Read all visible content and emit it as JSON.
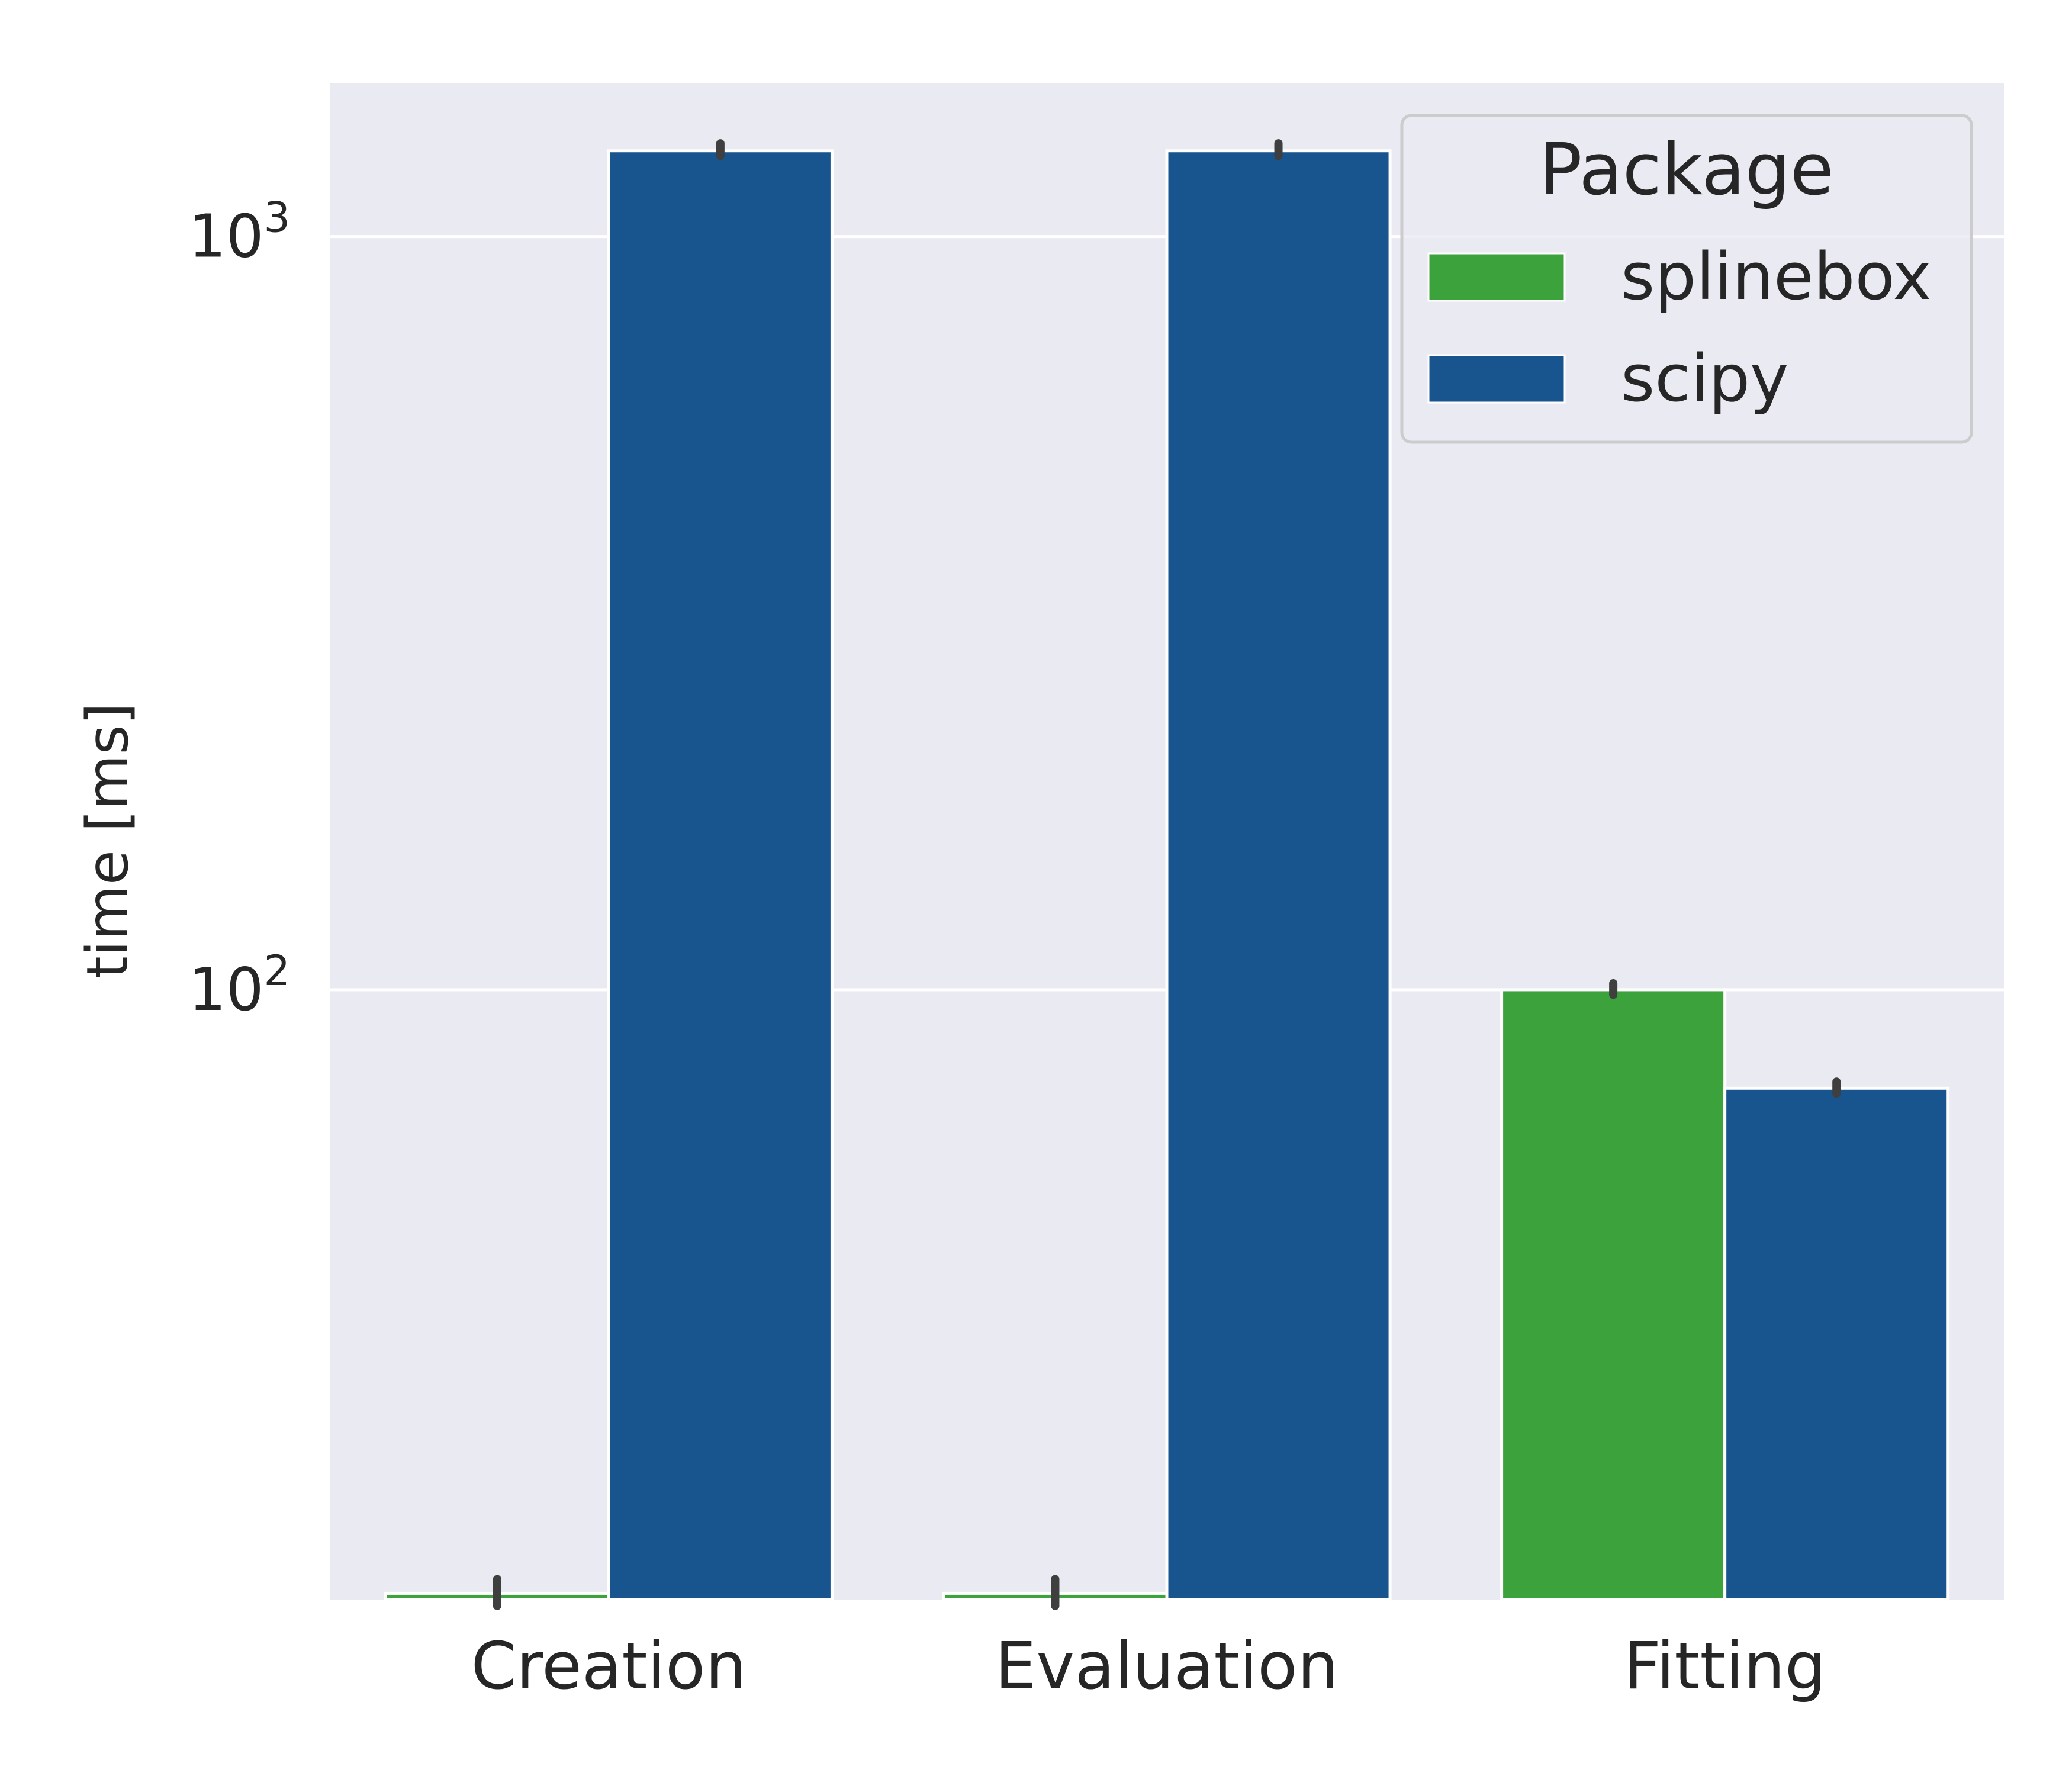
{
  "chart_data": {
    "type": "bar",
    "categories": [
      "Creation",
      "Evaluation",
      "Fitting"
    ],
    "series": [
      {
        "name": "splinebox",
        "color": "#3ca33c",
        "values": [
          15.8,
          15.8,
          100
        ],
        "error_low": [
          15.2,
          15.2,
          98.5
        ],
        "error_high": [
          16.5,
          16.5,
          102
        ]
      },
      {
        "name": "scipy",
        "color": "#18558f",
        "values": [
          1300,
          1300,
          74
        ],
        "error_low": [
          1280,
          1280,
          72.8
        ],
        "error_high": [
          1330,
          1330,
          75.5
        ]
      }
    ],
    "xlabel": "",
    "ylabel": "time [ms]",
    "yscale": "log",
    "ylim": [
      15.5,
      1600
    ],
    "yticks": [
      {
        "value": 100,
        "base": "10",
        "exp": "2"
      },
      {
        "value": 1000,
        "base": "10",
        "exp": "3"
      }
    ],
    "grid": true,
    "legend": {
      "title": "Package",
      "placement": "top-right"
    },
    "background_color": "#eaeaf2",
    "grid_color": "#ffffff",
    "errorbar_color": "#3f3f3f"
  }
}
